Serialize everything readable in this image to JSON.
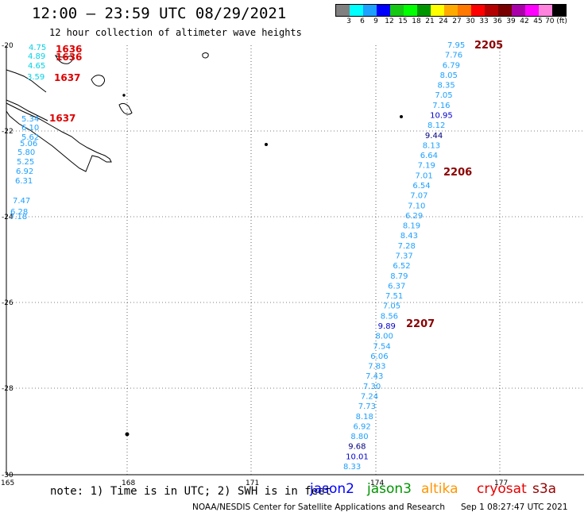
{
  "header": {
    "title": "12:00 – 23:59 UTC 08/29/2021",
    "subtitle": "12 hour collection of altimeter wave heights"
  },
  "legend": {
    "colors": [
      "#808080",
      "#00ffff",
      "#1ea0ff",
      "#0000ff",
      "#14c814",
      "#00ff00",
      "#009600",
      "#ffff00",
      "#ffaa00",
      "#ff7800",
      "#ff0000",
      "#b40000",
      "#780000",
      "#aa00aa",
      "#ff00ff",
      "#ff82dc",
      "#000000"
    ],
    "labels": [
      "3",
      "6",
      "9",
      "12",
      "15",
      "18",
      "21",
      "24",
      "27",
      "30",
      "33",
      "36",
      "39",
      "42",
      "45",
      "70 (ft)"
    ]
  },
  "axes": {
    "lat_labels": [
      "-20",
      "-22",
      "-24",
      "-26",
      "-28",
      "-30"
    ],
    "lon_labels": [
      "165",
      "168",
      "171",
      "174",
      "177"
    ]
  },
  "track_times": [
    {
      "text": "1636",
      "color": "#dd0000"
    },
    {
      "text": "1636",
      "color": "#dd0000"
    },
    {
      "text": "1637",
      "color": "#dd0000"
    },
    {
      "text": "1637",
      "color": "#dd0000"
    },
    {
      "text": "2205",
      "color": "#8b0000"
    },
    {
      "text": "2206",
      "color": "#8b0000"
    },
    {
      "text": "2207",
      "color": "#8b0000"
    }
  ],
  "west_track": [
    {
      "v": "4.75",
      "c": "cyan"
    },
    {
      "v": "4.89",
      "c": "cyan"
    },
    {
      "v": "4.65",
      "c": "cyan"
    },
    {
      "v": "3.59",
      "c": "cyan"
    },
    {
      "v": "5.34",
      "c": "cyan"
    },
    {
      "v": "6.10",
      "c": "cyan"
    },
    {
      "v": "5.62",
      "c": "cyan"
    },
    {
      "v": "5.06",
      "c": "cyan"
    },
    {
      "v": "5.80",
      "c": "cyan"
    },
    {
      "v": "5.25",
      "c": "cyan"
    },
    {
      "v": "6.92",
      "c": "cyan"
    },
    {
      "v": "6.31",
      "c": "cyan"
    },
    {
      "v": "7.47",
      "c": "cyan"
    },
    {
      "v": "6.28",
      "c": "cyan"
    },
    {
      "v": "7.18",
      "c": "cyan"
    }
  ],
  "east_track": [
    {
      "v": "7.95",
      "c": "cyan"
    },
    {
      "v": "7.76",
      "c": "cyan"
    },
    {
      "v": "6.79",
      "c": "cyan"
    },
    {
      "v": "8.05",
      "c": "cyan"
    },
    {
      "v": "8.35",
      "c": "cyan"
    },
    {
      "v": "7.05",
      "c": "cyan"
    },
    {
      "v": "7.16",
      "c": "cyan"
    },
    {
      "v": "10.95",
      "c": "blue"
    },
    {
      "v": "8.12",
      "c": "cyan"
    },
    {
      "v": "9.44",
      "c": "navy"
    },
    {
      "v": "8.13",
      "c": "cyan"
    },
    {
      "v": "6.64",
      "c": "cyan"
    },
    {
      "v": "7.19",
      "c": "cyan"
    },
    {
      "v": "7.01",
      "c": "cyan"
    },
    {
      "v": "6.54",
      "c": "cyan"
    },
    {
      "v": "7.07",
      "c": "cyan"
    },
    {
      "v": "7.10",
      "c": "cyan"
    },
    {
      "v": "6.29",
      "c": "cyan"
    },
    {
      "v": "8.19",
      "c": "cyan"
    },
    {
      "v": "8.43",
      "c": "cyan"
    },
    {
      "v": "7.28",
      "c": "cyan"
    },
    {
      "v": "7.37",
      "c": "cyan"
    },
    {
      "v": "6.52",
      "c": "cyan"
    },
    {
      "v": "8.79",
      "c": "cyan"
    },
    {
      "v": "6.37",
      "c": "cyan"
    },
    {
      "v": "7.51",
      "c": "cyan"
    },
    {
      "v": "7.05",
      "c": "cyan"
    },
    {
      "v": "8.56",
      "c": "cyan"
    },
    {
      "v": "9.89",
      "c": "blue"
    },
    {
      "v": "8.00",
      "c": "cyan"
    },
    {
      "v": "7.54",
      "c": "cyan"
    },
    {
      "v": "6.06",
      "c": "cyan"
    },
    {
      "v": "7.83",
      "c": "cyan"
    },
    {
      "v": "7.43",
      "c": "cyan"
    },
    {
      "v": "7.30",
      "c": "cyan"
    },
    {
      "v": "7.24",
      "c": "cyan"
    },
    {
      "v": "7.73",
      "c": "cyan"
    },
    {
      "v": "8.18",
      "c": "cyan"
    },
    {
      "v": "6.92",
      "c": "cyan"
    },
    {
      "v": "8.80",
      "c": "cyan"
    },
    {
      "v": "9.68",
      "c": "navy"
    },
    {
      "v": "10.01",
      "c": "blue"
    },
    {
      "v": "8.33",
      "c": "cyan"
    }
  ],
  "value_colors": {
    "cyan": "#1ea0ff",
    "light": "#00d2e6",
    "blue": "#0000d0",
    "navy": "#000080"
  },
  "note": "note: 1) Time is in UTC; 2) SWH is in feet",
  "satellites": [
    {
      "name": "jason2",
      "color": "#0000ff"
    },
    {
      "name": "jason3",
      "color": "#009600"
    },
    {
      "name": "altika",
      "color": "#ff9600"
    },
    {
      "name": "cryosat",
      "color": "#e60000"
    },
    {
      "name": "s3a",
      "color": "#960000"
    }
  ],
  "footer": "NOAA/NESDIS Center for Satellite Applications and Research",
  "footer_date": "Sep  1 08:27:47 UTC 2021"
}
